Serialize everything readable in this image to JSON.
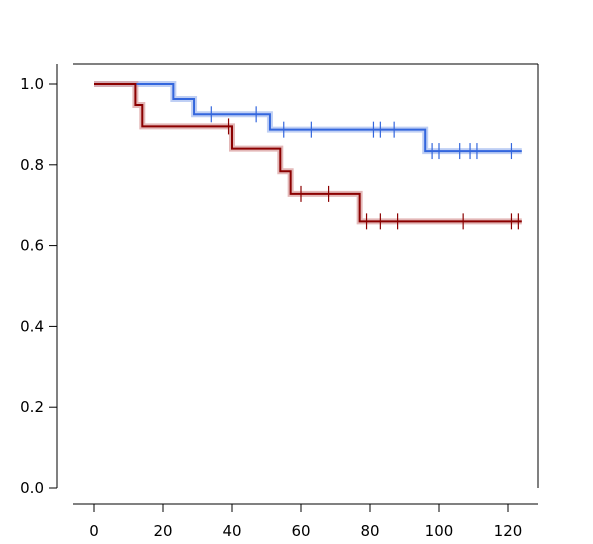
{
  "chart_data": {
    "type": "line",
    "subtype": "kaplan-meier survival curve with censor marks",
    "title": "",
    "xlabel": "",
    "ylabel": "",
    "xlim": [
      -6,
      129
    ],
    "ylim": [
      0,
      1.04
    ],
    "x_ticks": [
      0,
      20,
      40,
      60,
      80,
      100,
      120
    ],
    "y_ticks": [
      0.0,
      0.2,
      0.4,
      0.6,
      0.8,
      1.0
    ],
    "x_tick_labels": [
      "0",
      "20",
      "40",
      "60",
      "80",
      "100",
      "120"
    ],
    "y_tick_labels": [
      "0.0",
      "0.2",
      "0.4",
      "0.6",
      "0.8",
      "1.0"
    ],
    "grid": false,
    "legend": "none",
    "series": [
      {
        "color": "#3366dd",
        "band_color": "#a9bff0",
        "steps": [
          [
            0,
            1.0
          ],
          [
            23,
            0.963
          ],
          [
            29,
            0.925
          ],
          [
            51,
            0.887
          ],
          [
            96,
            0.834
          ]
        ],
        "end_x": 124,
        "censor_times": [
          34,
          47,
          55,
          63,
          81,
          83,
          87,
          98,
          100,
          106,
          109,
          111,
          121
        ]
      },
      {
        "color": "#8b0000",
        "band_color": "#d9a0a0",
        "steps": [
          [
            0,
            1.0
          ],
          [
            12,
            0.948
          ],
          [
            14,
            0.895
          ],
          [
            40,
            0.84
          ],
          [
            54,
            0.784
          ],
          [
            57,
            0.728
          ],
          [
            77,
            0.66
          ]
        ],
        "end_x": 124,
        "censor_times": [
          39,
          60,
          68,
          79,
          83,
          88,
          107,
          121,
          123
        ]
      }
    ]
  }
}
